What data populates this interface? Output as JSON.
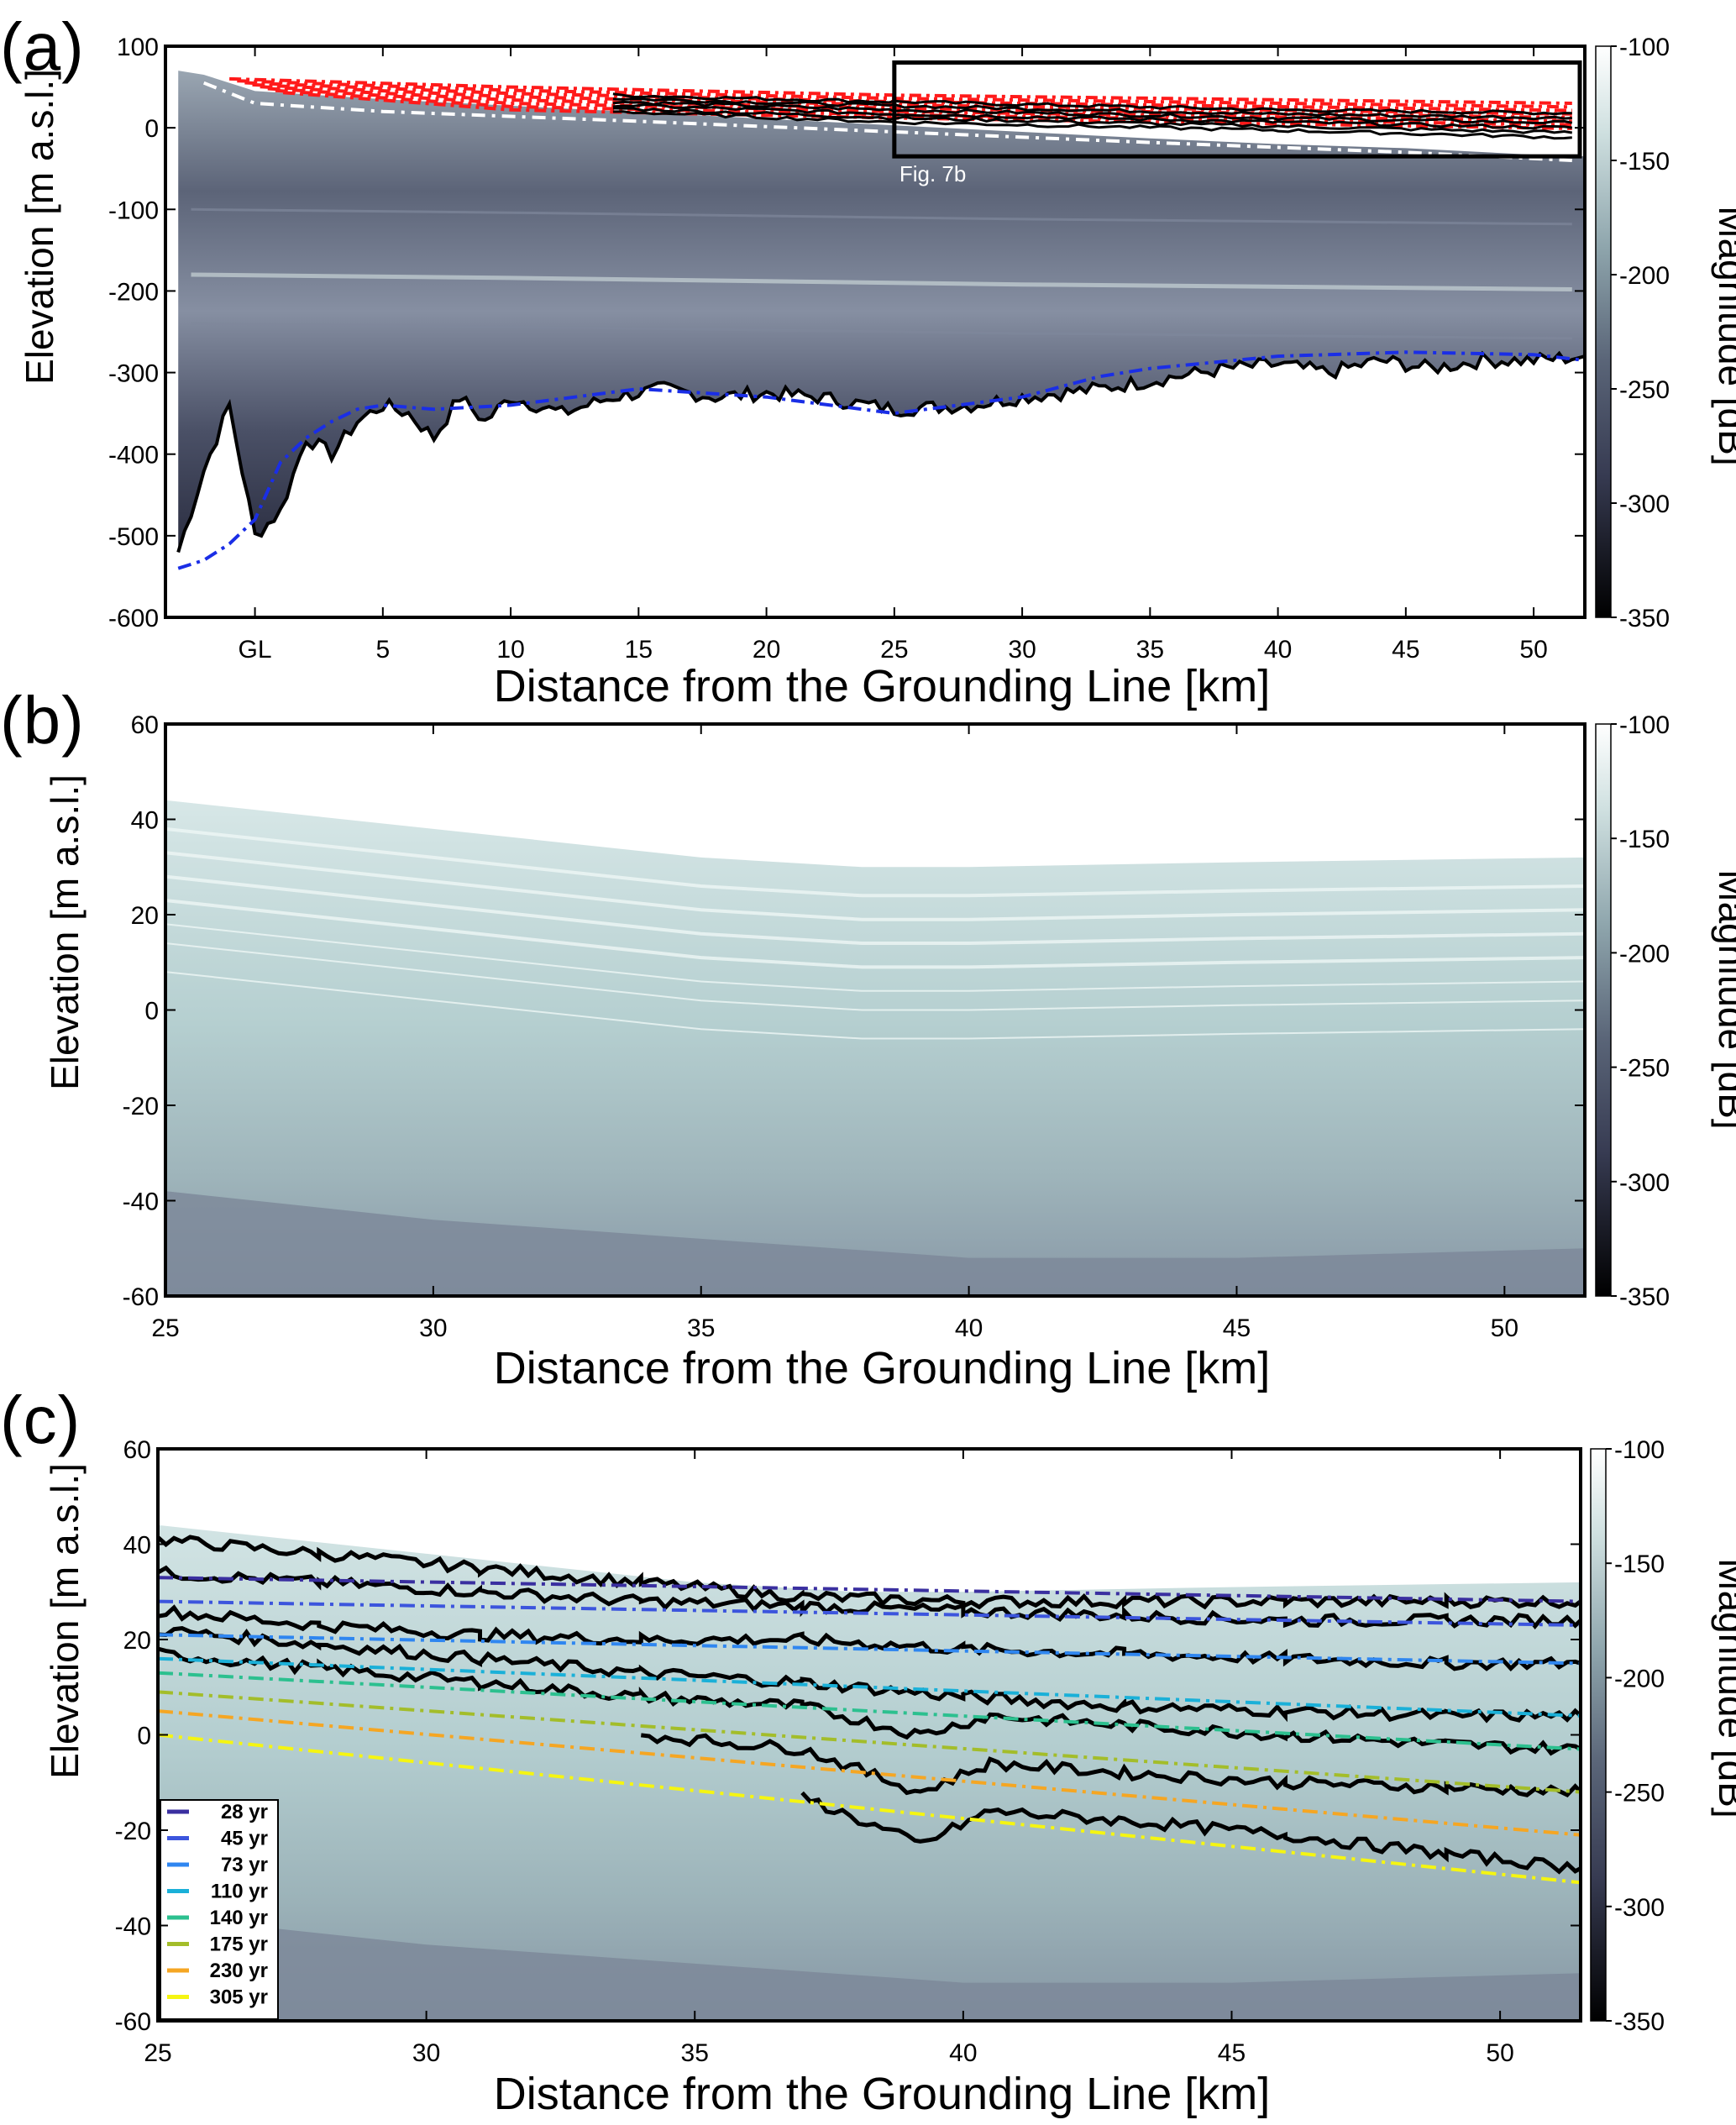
{
  "panels": {
    "a": {
      "letter": "(a)",
      "ylabel": "Elevation [m a.s.l.]",
      "xlabel": "Distance from the Grounding Line [km]",
      "colorbar_label": "Magnitude [dB]",
      "box_label": "Fig. 7b"
    },
    "b": {
      "letter": "(b)",
      "ylabel": "Elevation [m a.s.l.]",
      "xlabel": "Distance from the Grounding Line [km]",
      "colorbar_label": "Magnitude [dB]"
    },
    "c": {
      "letter": "(c)",
      "ylabel": "Elevation [m a.s.l.]",
      "xlabel": "Distance from the Grounding Line [km]",
      "colorbar_label": "Magnitude [dB]"
    }
  },
  "colors": {
    "surface_red": "#ff1a1a",
    "base_blue": "#1a2ee6",
    "dashed_white": "#ffffff",
    "traced_black": "#000000"
  },
  "chart_data": [
    {
      "type": "heatmap",
      "panel": "a",
      "title": "",
      "xlabel": "Distance from the Grounding Line [km]",
      "ylabel": "Elevation [m a.s.l.]",
      "xlim": [
        -3.5,
        52
      ],
      "ylim": [
        -600,
        100
      ],
      "x_ticks": [
        0,
        5,
        10,
        15,
        20,
        25,
        30,
        35,
        40,
        45,
        50
      ],
      "x_tick_labels": [
        "GL",
        "5",
        "10",
        "15",
        "20",
        "25",
        "30",
        "35",
        "40",
        "45",
        "50"
      ],
      "y_ticks": [
        100,
        0,
        -100,
        -200,
        -300,
        -400,
        -500,
        -600
      ],
      "y_tick_labels": [
        "100",
        "0",
        "-100",
        "-200",
        "-300",
        "-400",
        "-500",
        "-600"
      ],
      "colorbar": {
        "label": "Magnitude [dB]",
        "range": [
          -350,
          -100
        ],
        "ticks": [
          -100,
          -150,
          -200,
          -250,
          -300,
          -350
        ]
      },
      "annotation_box": {
        "label": "Fig. 7b",
        "x_range": [
          25,
          52
        ],
        "y_range": [
          -35,
          80
        ]
      },
      "series": [
        {
          "x": [
            -3,
            -2,
            0,
            5,
            10,
            15,
            20,
            25,
            30,
            35,
            40,
            45,
            50,
            52
          ],
          "values": [
            65,
            60,
            40,
            30,
            22,
            14,
            6,
            -2,
            -10,
            -18,
            -25,
            -30,
            -38,
            -40
          ]
        },
        {
          "x": [
            -3,
            -2.5,
            -2,
            -1,
            0,
            1,
            2,
            3,
            4,
            5,
            6,
            7,
            8,
            9,
            10,
            12,
            14,
            16,
            18,
            20,
            22,
            25,
            28,
            30,
            33,
            35,
            38,
            40,
            42,
            44,
            46,
            48,
            50,
            52
          ],
          "values": [
            -520,
            -470,
            -420,
            -340,
            -500,
            -470,
            -380,
            -400,
            -360,
            -340,
            -350,
            -380,
            -330,
            -360,
            -330,
            -350,
            -330,
            -320,
            -330,
            -325,
            -330,
            -345,
            -340,
            -330,
            -320,
            -310,
            -295,
            -290,
            -300,
            -285,
            -295,
            -285,
            -285,
            -280
          ]
        },
        {
          "x": [
            -3,
            -2,
            -1,
            0,
            1,
            2,
            3,
            4,
            5,
            7,
            10,
            15,
            20,
            25,
            30,
            33,
            35,
            40,
            45,
            50,
            52
          ],
          "values": [
            -540,
            -530,
            -510,
            -480,
            -410,
            -380,
            -360,
            -345,
            -340,
            -345,
            -340,
            -320,
            -330,
            -350,
            -330,
            -305,
            -295,
            -280,
            -275,
            -278,
            -285
          ]
        }
      ]
    },
    {
      "type": "heatmap",
      "panel": "b",
      "title": "",
      "xlabel": "Distance from the Grounding Line [km]",
      "ylabel": "Elevation [m a.s.l.]",
      "xlim": [
        25,
        51.5
      ],
      "ylim": [
        -60,
        60
      ],
      "x_ticks": [
        25,
        30,
        35,
        40,
        45,
        50
      ],
      "x_tick_labels": [
        "25",
        "30",
        "35",
        "40",
        "45",
        "50"
      ],
      "y_ticks": [
        60,
        40,
        20,
        0,
        -20,
        -40,
        -60
      ],
      "y_tick_labels": [
        "60",
        "40",
        "20",
        "0",
        "-20",
        "-40",
        "-60"
      ],
      "colorbar": {
        "label": "Magnitude [dB]",
        "range": [
          -350,
          -100
        ],
        "ticks": [
          -100,
          -150,
          -200,
          -250,
          -300,
          -350
        ]
      }
    },
    {
      "type": "line",
      "panel": "c",
      "title": "",
      "xlabel": "Distance from the Grounding Line [km]",
      "ylabel": "Elevation [m a.s.l.]",
      "xlim": [
        25,
        51.5
      ],
      "ylim": [
        -60,
        60
      ],
      "x_ticks": [
        25,
        30,
        35,
        40,
        45,
        50
      ],
      "x_tick_labels": [
        "25",
        "30",
        "35",
        "40",
        "45",
        "50"
      ],
      "y_ticks": [
        60,
        40,
        20,
        0,
        -20,
        -40,
        -60
      ],
      "y_tick_labels": [
        "60",
        "40",
        "20",
        "0",
        "-20",
        "-40",
        "-60"
      ],
      "colorbar": {
        "label": "Magnitude [dB]",
        "range": [
          -350,
          -100
        ],
        "ticks": [
          -100,
          -150,
          -200,
          -250,
          -300,
          -350
        ]
      },
      "legend_position": "bottom-left",
      "series": [
        {
          "name": "28 yr",
          "color": "#3a2fa0",
          "x": [
            25,
            51.5
          ],
          "values": [
            33,
            28
          ]
        },
        {
          "name": "45 yr",
          "color": "#3c55dd",
          "x": [
            25,
            51.5
          ],
          "values": [
            28,
            23
          ]
        },
        {
          "name": "73 yr",
          "color": "#2f86f0",
          "x": [
            25,
            51.5
          ],
          "values": [
            21,
            15
          ]
        },
        {
          "name": "110 yr",
          "color": "#1ab0d8",
          "x": [
            25,
            51.5
          ],
          "values": [
            16,
            4
          ]
        },
        {
          "name": "140 yr",
          "color": "#2cc08f",
          "x": [
            25,
            51.5
          ],
          "values": [
            13,
            -3
          ]
        },
        {
          "name": "175 yr",
          "color": "#a3bd2a",
          "x": [
            25,
            51.5
          ],
          "values": [
            9,
            -12
          ]
        },
        {
          "name": "230 yr",
          "color": "#f5a623",
          "x": [
            25,
            51.5
          ],
          "values": [
            5,
            -21
          ]
        },
        {
          "name": "305 yr",
          "color": "#f5f512",
          "x": [
            25,
            51.5
          ],
          "values": [
            0,
            -31
          ]
        }
      ],
      "traced_layers": [
        {
          "x": [
            25,
            28,
            31,
            34,
            37,
            40,
            43,
            46,
            49,
            51.5
          ],
          "values": [
            41,
            38,
            35,
            32,
            29,
            28,
            28,
            28,
            28,
            28
          ]
        },
        {
          "x": [
            25,
            28,
            31,
            34,
            37,
            40,
            43,
            46,
            49,
            51.5
          ],
          "values": [
            34,
            32,
            30,
            28,
            27,
            26,
            25,
            24,
            24,
            24
          ]
        },
        {
          "x": [
            25,
            28,
            31,
            34,
            37,
            40,
            43,
            46,
            49,
            51.5
          ],
          "values": [
            26,
            23,
            21,
            20,
            20,
            18,
            17,
            16,
            15,
            15
          ]
        },
        {
          "x": [
            25,
            28,
            31,
            34,
            37,
            40,
            43,
            46,
            49,
            51.5
          ],
          "values": [
            22,
            19,
            16,
            13,
            11,
            8,
            6,
            5,
            4,
            4
          ]
        },
        {
          "x": [
            25,
            28,
            31,
            34,
            37,
            39.2,
            40.5,
            43,
            46,
            49,
            51.5
          ],
          "values": [
            17,
            14,
            11,
            8,
            6,
            0,
            4,
            2,
            0,
            -2,
            -3
          ]
        },
        {
          "x": [
            34,
            37,
            39.2,
            40.5,
            43,
            46,
            49,
            51.5
          ],
          "values": [
            0,
            -3,
            -12,
            -6,
            -8,
            -10,
            -11,
            -12
          ]
        },
        {
          "x": [
            37,
            39.2,
            40.5,
            43,
            46,
            49,
            51.5
          ],
          "values": [
            -13,
            -23,
            -16,
            -18,
            -21,
            -25,
            -28
          ]
        }
      ]
    }
  ]
}
